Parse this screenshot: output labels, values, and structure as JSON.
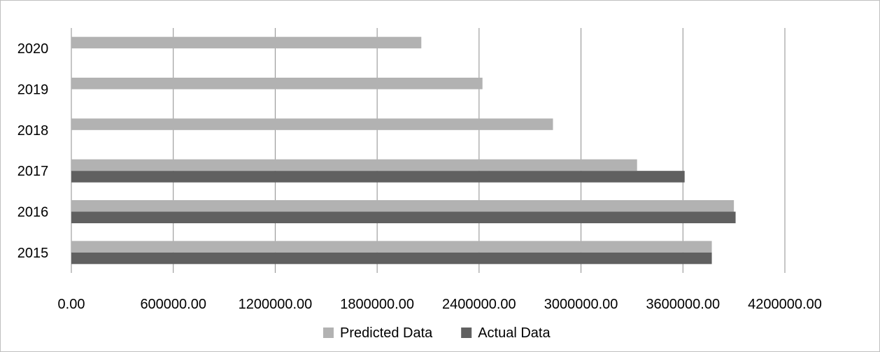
{
  "chart_data": {
    "type": "bar",
    "orientation": "horizontal",
    "categories": [
      "2015",
      "2016",
      "2017",
      "2018",
      "2019",
      "2020"
    ],
    "series": [
      {
        "name": "Predicted Data",
        "color": "#b2b2b2",
        "values": [
          3770000,
          3900000,
          3330000,
          2835000,
          2420000,
          2060000
        ]
      },
      {
        "name": "Actual Data",
        "color": "#606060",
        "values": [
          3770000,
          3910000,
          3610000,
          null,
          null,
          null
        ]
      }
    ],
    "x_ticks": [
      "0.00",
      "600000.00",
      "1200000.00",
      "1800000.00",
      "2400000.00",
      "3000000.00",
      "3600000.00",
      "4200000.00"
    ],
    "xlim": [
      0,
      4200000
    ],
    "grid": "vertical",
    "legend_position": "bottom",
    "title": "",
    "xlabel": "",
    "ylabel": ""
  }
}
